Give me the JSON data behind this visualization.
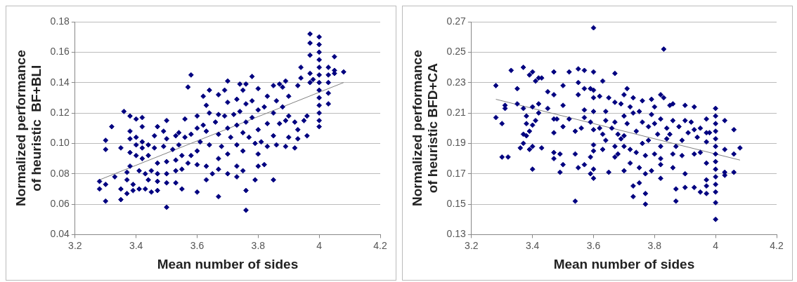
{
  "chart_data": [
    {
      "type": "scatter",
      "xlabel": "Mean number of sides",
      "ylabel": "Normalized performance\nof heuristic  BF+BLI",
      "xlim": [
        3.2,
        4.2
      ],
      "xticks": [
        3.2,
        3.4,
        3.6,
        3.8,
        4,
        4.2
      ],
      "ylim": [
        0.04,
        0.18
      ],
      "yticks": [
        {
          "value": 0.04,
          "label": "0.04"
        },
        {
          "value": 0.06,
          "label": "0.06"
        },
        {
          "value": 0.08,
          "label": "0.08"
        },
        {
          "value": 0.1,
          "label": "0.10"
        },
        {
          "value": 0.12,
          "label": "0.12"
        },
        {
          "value": 0.14,
          "label": "0.14"
        },
        {
          "value": 0.16,
          "label": "0.16"
        },
        {
          "value": 0.18,
          "label": "0.18"
        }
      ],
      "grid": "y",
      "legend": false,
      "marker": "diamond",
      "series": [
        {
          "type": "scatter",
          "color": "#000080",
          "x": [
            3.28,
            3.28,
            3.3,
            3.3,
            3.3,
            3.3,
            3.32,
            3.33,
            3.35,
            3.35,
            3.35,
            3.36,
            3.37,
            3.37,
            3.37,
            3.38,
            3.38,
            3.38,
            3.38,
            3.38,
            3.39,
            3.39,
            3.4,
            3.4,
            3.4,
            3.4,
            3.41,
            3.41,
            3.42,
            3.42,
            3.42,
            3.42,
            3.42,
            3.43,
            3.43,
            3.44,
            3.44,
            3.44,
            3.45,
            3.45,
            3.46,
            3.46,
            3.47,
            3.47,
            3.47,
            3.47,
            3.47,
            3.49,
            3.49,
            3.5,
            3.5,
            3.5,
            3.5,
            3.5,
            3.5,
            3.52,
            3.53,
            3.53,
            3.53,
            3.53,
            3.54,
            3.54,
            3.55,
            3.55,
            3.55,
            3.56,
            3.56,
            3.57,
            3.57,
            3.58,
            3.58,
            3.58,
            3.6,
            3.6,
            3.6,
            3.6,
            3.6,
            3.61,
            3.62,
            3.62,
            3.63,
            3.63,
            3.63,
            3.63,
            3.64,
            3.64,
            3.64,
            3.65,
            3.66,
            3.67,
            3.67,
            3.67,
            3.67,
            3.67,
            3.67,
            3.68,
            3.69,
            3.69,
            3.7,
            3.7,
            3.7,
            3.7,
            3.7,
            3.71,
            3.72,
            3.73,
            3.73,
            3.73,
            3.73,
            3.73,
            3.74,
            3.74,
            3.75,
            3.75,
            3.75,
            3.75,
            3.76,
            3.76,
            3.76,
            3.76,
            3.76,
            3.77,
            3.78,
            3.78,
            3.78,
            3.79,
            3.79,
            3.8,
            3.8,
            3.8,
            3.8,
            3.8,
            3.81,
            3.82,
            3.82,
            3.83,
            3.83,
            3.83,
            3.85,
            3.85,
            3.85,
            3.85,
            3.86,
            3.86,
            3.87,
            3.87,
            3.88,
            3.88,
            3.89,
            3.89,
            3.89,
            3.9,
            3.9,
            3.9,
            3.92,
            3.92,
            3.93,
            3.93,
            3.93,
            3.94,
            3.94,
            3.95,
            3.96,
            3.96,
            3.97,
            3.97,
            3.97,
            3.97,
            3.97,
            3.98,
            4,
            4,
            4,
            4,
            4,
            4,
            4,
            4,
            4,
            4,
            4,
            4,
            4,
            4.03,
            4.03,
            4.03,
            4.03,
            4.03,
            4.05,
            4.05,
            4.05,
            4.08
          ],
          "values": [
            0.075,
            0.07,
            0.073,
            0.062,
            0.102,
            0.096,
            0.111,
            0.078,
            0.07,
            0.063,
            0.097,
            0.121,
            0.081,
            0.076,
            0.067,
            0.118,
            0.108,
            0.103,
            0.094,
            0.085,
            0.073,
            0.069,
            0.116,
            0.104,
            0.099,
            0.092,
            0.082,
            0.07,
            0.117,
            0.111,
            0.101,
            0.097,
            0.09,
            0.08,
            0.07,
            0.099,
            0.092,
            0.076,
            0.082,
            0.068,
            0.105,
            0.097,
            0.111,
            0.087,
            0.08,
            0.075,
            0.069,
            0.108,
            0.098,
            0.115,
            0.103,
            0.088,
            0.08,
            0.074,
            0.058,
            0.096,
            0.105,
            0.089,
            0.082,
            0.074,
            0.107,
            0.099,
            0.092,
            0.083,
            0.07,
            0.116,
            0.104,
            0.137,
            0.087,
            0.145,
            0.106,
            0.092,
            0.118,
            0.11,
            0.095,
            0.086,
            0.068,
            0.101,
            0.131,
            0.112,
            0.125,
            0.108,
            0.085,
            0.076,
            0.135,
            0.12,
            0.099,
            0.08,
            0.114,
            0.132,
            0.119,
            0.106,
            0.09,
            0.083,
            0.065,
            0.098,
            0.135,
            0.118,
            0.141,
            0.127,
            0.11,
            0.093,
            0.08,
            0.104,
            0.119,
            0.129,
            0.112,
            0.099,
            0.085,
            0.078,
            0.139,
            0.121,
            0.135,
            0.107,
            0.095,
            0.082,
            0.139,
            0.126,
            0.114,
            0.069,
            0.056,
            0.104,
            0.144,
            0.128,
            0.117,
            0.076,
            0.1,
            0.136,
            0.122,
            0.109,
            0.093,
            0.085,
            0.101,
            0.124,
            0.086,
            0.131,
            0.113,
            0.098,
            0.138,
            0.12,
            0.105,
            0.076,
            0.128,
            0.099,
            0.139,
            0.113,
            0.137,
            0.124,
            0.141,
            0.115,
            0.098,
            0.131,
            0.118,
            0.104,
            0.114,
            0.097,
            0.138,
            0.109,
            0.103,
            0.15,
            0.143,
            0.115,
            0.105,
            0.118,
            0.172,
            0.166,
            0.158,
            0.146,
            0.14,
            0.142,
            0.17,
            0.165,
            0.16,
            0.155,
            0.15,
            0.145,
            0.14,
            0.135,
            0.13,
            0.125,
            0.12,
            0.115,
            0.111,
            0.15,
            0.145,
            0.14,
            0.133,
            0.126,
            0.157,
            0.148,
            0.146,
            0.147
          ]
        },
        {
          "type": "line",
          "color": "#808080",
          "marker": "none",
          "x": [
            3.28,
            4.08
          ],
          "values": [
            0.076,
            0.14
          ]
        }
      ]
    },
    {
      "type": "scatter",
      "xlabel": "Mean number of sides",
      "ylabel": "Normalized performance\nof heuristic BFD+CA",
      "xlim": [
        3.2,
        4.2
      ],
      "xticks": [
        3.2,
        3.4,
        3.6,
        3.8,
        4,
        4.2
      ],
      "ylim": [
        0.13,
        0.27
      ],
      "yticks": [
        0.13,
        0.15,
        0.17,
        0.19,
        0.21,
        0.23,
        0.25,
        0.27
      ],
      "grid": "y",
      "legend": false,
      "marker": "diamond",
      "series": [
        {
          "type": "scatter",
          "color": "#000080",
          "x": [
            3.28,
            3.28,
            3.3,
            3.3,
            3.31,
            3.31,
            3.32,
            3.33,
            3.35,
            3.35,
            3.36,
            3.37,
            3.37,
            3.37,
            3.37,
            3.38,
            3.38,
            3.38,
            3.39,
            3.39,
            3.39,
            3.4,
            3.4,
            3.4,
            3.4,
            3.4,
            3.41,
            3.41,
            3.42,
            3.42,
            3.42,
            3.43,
            3.43,
            3.45,
            3.45,
            3.47,
            3.47,
            3.47,
            3.47,
            3.47,
            3.47,
            3.48,
            3.49,
            3.49,
            3.5,
            3.5,
            3.5,
            3.5,
            3.52,
            3.52,
            3.54,
            3.54,
            3.54,
            3.55,
            3.55,
            3.55,
            3.55,
            3.56,
            3.57,
            3.57,
            3.57,
            3.57,
            3.57,
            3.59,
            3.59,
            3.59,
            3.59,
            3.6,
            3.6,
            3.6,
            3.6,
            3.6,
            3.6,
            3.6,
            3.6,
            3.6,
            3.6,
            3.62,
            3.62,
            3.63,
            3.63,
            3.63,
            3.64,
            3.64,
            3.64,
            3.65,
            3.65,
            3.66,
            3.67,
            3.67,
            3.67,
            3.67,
            3.67,
            3.68,
            3.68,
            3.69,
            3.69,
            3.7,
            3.7,
            3.7,
            3.7,
            3.7,
            3.71,
            3.71,
            3.72,
            3.72,
            3.72,
            3.73,
            3.73,
            3.73,
            3.73,
            3.74,
            3.74,
            3.75,
            3.75,
            3.75,
            3.76,
            3.76,
            3.76,
            3.77,
            3.77,
            3.77,
            3.77,
            3.78,
            3.78,
            3.79,
            3.79,
            3.79,
            3.8,
            3.8,
            3.8,
            3.81,
            3.82,
            3.82,
            3.82,
            3.82,
            3.82,
            3.82,
            3.83,
            3.83,
            3.84,
            3.84,
            3.85,
            3.85,
            3.86,
            3.86,
            3.86,
            3.86,
            3.87,
            3.87,
            3.87,
            3.88,
            3.89,
            3.89,
            3.9,
            3.9,
            3.9,
            3.9,
            3.91,
            3.92,
            3.93,
            3.93,
            3.93,
            3.93,
            3.94,
            3.95,
            3.95,
            3.95,
            3.97,
            3.97,
            3.97,
            3.97,
            3.97,
            3.97,
            3.97,
            3.98,
            4,
            4,
            4,
            4,
            4,
            4,
            4,
            4,
            4,
            4,
            4,
            4,
            4,
            4,
            4.03,
            4.03,
            4.03,
            4.03,
            4.06,
            4.06,
            4.06,
            4.08
          ],
          "values": [
            0.228,
            0.207,
            0.203,
            0.181,
            0.215,
            0.213,
            0.181,
            0.238,
            0.226,
            0.216,
            0.187,
            0.24,
            0.213,
            0.196,
            0.19,
            0.208,
            0.203,
            0.195,
            0.235,
            0.198,
            0.186,
            0.237,
            0.214,
            0.202,
            0.188,
            0.173,
            0.231,
            0.205,
            0.233,
            0.216,
            0.21,
            0.233,
            0.187,
            0.224,
            0.213,
            0.237,
            0.222,
            0.206,
            0.197,
            0.184,
            0.18,
            0.206,
            0.183,
            0.171,
            0.228,
            0.215,
            0.201,
            0.176,
            0.237,
            0.206,
            0.198,
            0.183,
            0.152,
            0.239,
            0.23,
            0.222,
            0.174,
            0.2,
            0.238,
            0.226,
            0.212,
            0.207,
            0.176,
            0.226,
            0.204,
            0.181,
            0.17,
            0.266,
            0.237,
            0.225,
            0.22,
            0.211,
            0.199,
            0.189,
            0.185,
            0.173,
            0.167,
            0.221,
            0.2,
            0.231,
            0.196,
            0.186,
            0.211,
            0.205,
            0.192,
            0.22,
            0.171,
            0.2,
            0.236,
            0.217,
            0.204,
            0.188,
            0.181,
            0.183,
            0.196,
            0.216,
            0.193,
            0.222,
            0.208,
            0.195,
            0.188,
            0.172,
            0.226,
            0.203,
            0.214,
            0.186,
            0.177,
            0.22,
            0.21,
            0.162,
            0.155,
            0.198,
            0.184,
            0.211,
            0.174,
            0.164,
            0.218,
            0.204,
            0.19,
            0.182,
            0.17,
            0.157,
            0.15,
            0.201,
            0.192,
            0.219,
            0.209,
            0.172,
            0.214,
            0.203,
            0.183,
            0.196,
            0.222,
            0.206,
            0.188,
            0.18,
            0.176,
            0.167,
            0.252,
            0.22,
            0.2,
            0.193,
            0.215,
            0.196,
            0.216,
            0.205,
            0.183,
            0.174,
            0.188,
            0.16,
            0.152,
            0.201,
            0.192,
            0.182,
            0.215,
            0.205,
            0.17,
            0.161,
            0.197,
            0.204,
            0.214,
            0.199,
            0.183,
            0.161,
            0.194,
            0.2,
            0.184,
            0.158,
            0.206,
            0.197,
            0.191,
            0.177,
            0.166,
            0.162,
            0.157,
            0.197,
            0.213,
            0.208,
            0.203,
            0.198,
            0.193,
            0.188,
            0.183,
            0.178,
            0.173,
            0.168,
            0.163,
            0.158,
            0.151,
            0.14,
            0.205,
            0.186,
            0.171,
            0.169,
            0.199,
            0.183,
            0.171,
            0.187
          ]
        },
        {
          "type": "line",
          "color": "#808080",
          "marker": "none",
          "x": [
            3.28,
            4.08
          ],
          "values": [
            0.219,
            0.179
          ]
        }
      ]
    }
  ]
}
